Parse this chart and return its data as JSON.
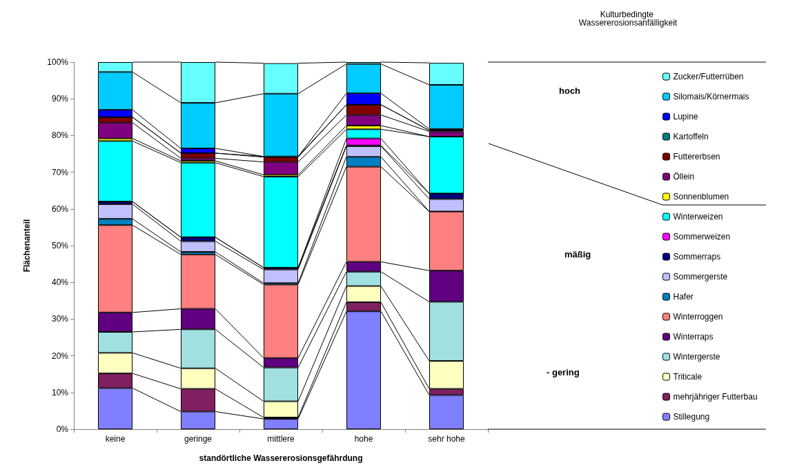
{
  "chart_data": {
    "type": "bar",
    "stacked": true,
    "title": "Kulturbedingte Wassererosionsanfälligkeit",
    "xlabel": "standörtliche Wassererosionsgefährdung",
    "ylabel": "Flächenanteil",
    "categories": [
      "keine",
      "geringe",
      "mittlere",
      "hohe",
      "sehr hohe"
    ],
    "ylim": [
      0,
      100
    ],
    "yticks": [
      {
        "value": 0,
        "label": "0%"
      },
      {
        "value": 10,
        "label": "10%"
      },
      {
        "value": 20,
        "label": "20%"
      },
      {
        "value": 30,
        "label": "30%"
      },
      {
        "value": 40,
        "label": "40%"
      },
      {
        "value": 50,
        "label": "50%"
      },
      {
        "value": 60,
        "label": "60%"
      },
      {
        "value": 70,
        "label": "70%"
      },
      {
        "value": 80,
        "label": "80%"
      },
      {
        "value": 90,
        "label": "90%"
      },
      {
        "value": 100,
        "label": "100%"
      }
    ],
    "grid": false,
    "legend": "right",
    "annotations": [
      "hoch",
      "mäßig",
      "- gering"
    ],
    "series": [
      {
        "name": "Stillegung",
        "color": "#8080ff",
        "values": [
          11.2,
          4.8,
          2.8,
          32.1,
          9.3
        ]
      },
      {
        "name": "mehrjähriger Futterbau",
        "color": "#802060",
        "values": [
          4.0,
          6.2,
          0.4,
          2.5,
          1.7
        ]
      },
      {
        "name": "Triticale",
        "color": "#ffffc0",
        "values": [
          5.6,
          5.6,
          4.4,
          4.4,
          7.6
        ]
      },
      {
        "name": "Wintergerste",
        "color": "#a0e0e0",
        "values": [
          5.7,
          10.6,
          9.2,
          3.9,
          16.1
        ]
      },
      {
        "name": "Winterraps",
        "color": "#600080",
        "values": [
          5.3,
          5.6,
          2.6,
          2.7,
          8.5
        ]
      },
      {
        "name": "Winterroggen",
        "color": "#ff8080",
        "values": [
          23.8,
          14.8,
          20.0,
          25.9,
          16.1
        ]
      },
      {
        "name": "Hafer",
        "color": "#0080c0",
        "values": [
          1.7,
          0.7,
          0.4,
          2.7,
          0
        ]
      },
      {
        "name": "Sommergerste",
        "color": "#c0c0ff",
        "values": [
          4.0,
          2.9,
          3.7,
          2.9,
          3.4
        ]
      },
      {
        "name": "Sommerraps",
        "color": "#000080",
        "values": [
          0.7,
          1.1,
          0.5,
          0.2,
          1.5
        ]
      },
      {
        "name": "Sommerweizen",
        "color": "#ff00ff",
        "values": [
          0,
          0,
          0,
          1.9,
          0
        ]
      },
      {
        "name": "Winterweizen",
        "color": "#00ffff",
        "values": [
          16.5,
          20.3,
          24.8,
          2.5,
          15.5
        ]
      },
      {
        "name": "Sonnenblumen",
        "color": "#ffff00",
        "values": [
          0.7,
          0.5,
          0.5,
          1.0,
          null
        ]
      },
      {
        "name": "Öllein",
        "color": "#800080",
        "values": [
          4.3,
          0.7,
          3.5,
          2.9,
          1.4
        ]
      },
      {
        "name": "Futtererbsen",
        "color": "#800000",
        "values": [
          1.5,
          1.4,
          1.3,
          2.8,
          0.3
        ]
      },
      {
        "name": "Kartoffeln",
        "color": "#008080",
        "values": [
          0,
          0,
          0.2,
          0,
          0
        ]
      },
      {
        "name": "Lupine",
        "color": "#0000ff",
        "values": [
          2.0,
          1.3,
          null,
          3.1,
          0.4
        ]
      },
      {
        "name": "Silomais/Körnermais",
        "color": "#00ccff",
        "values": [
          10.3,
          12.4,
          17.1,
          8.0,
          12.0
        ]
      },
      {
        "name": "Zucker/Futterrüben",
        "color": "#66ffff",
        "values": [
          2.7,
          11.1,
          8.3,
          0.5,
          6.0
        ]
      }
    ]
  }
}
